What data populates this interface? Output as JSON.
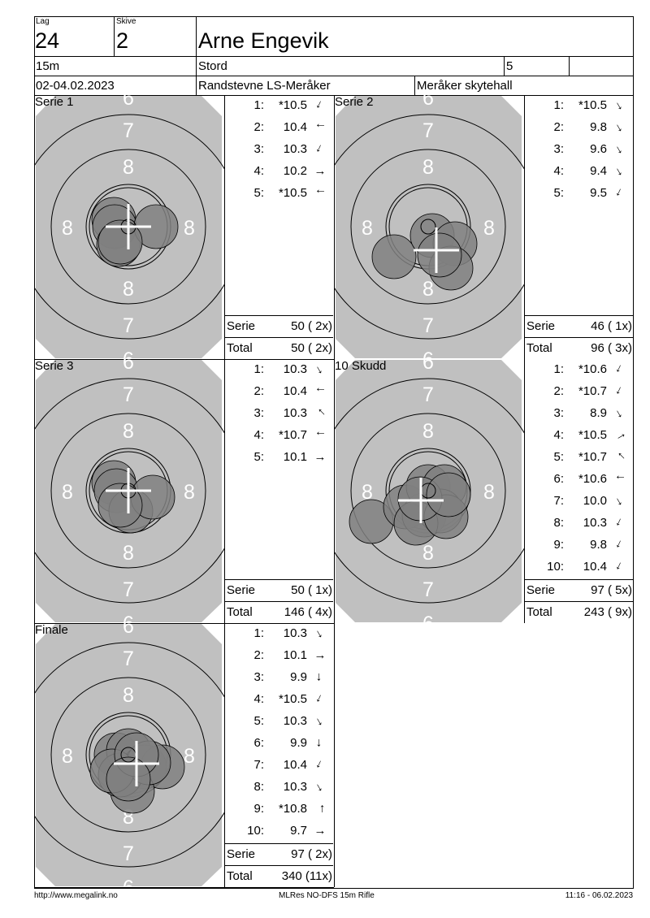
{
  "header": {
    "lag_label": "Lag",
    "lag": "24",
    "skive_label": "Skive",
    "skive": "2",
    "name": "Arne Engevik",
    "distance": "15m",
    "club": "Stord",
    "class": "5",
    "extra": "",
    "date": "02-04.02.2023",
    "event": "Randstevne LS-Meråker",
    "venue": "Meråker skytehall"
  },
  "ring_labels": {
    "r6": "6",
    "r7": "7",
    "r8": "8"
  },
  "colors": {
    "target_gray": "#c0c0c0",
    "shot_fill": "#808080",
    "mean_cross": "#ffffff"
  },
  "panels": [
    {
      "title": "Serie 1",
      "shots": [
        {
          "n": "1:",
          "v": "*10.5",
          "dir": "down-left"
        },
        {
          "n": "2:",
          "v": "10.4",
          "dir": "left"
        },
        {
          "n": "3:",
          "v": "10.3",
          "dir": "down-left"
        },
        {
          "n": "4:",
          "v": "10.2",
          "dir": "right"
        },
        {
          "n": "5:",
          "v": "*10.5",
          "dir": "left"
        }
      ],
      "serie_label": "Serie",
      "serie": "50 ( 2x)",
      "total_label": "Total",
      "total": "50 ( 2x)"
    },
    {
      "title": "Serie 2",
      "shots": [
        {
          "n": "1:",
          "v": "*10.5",
          "dir": "down-right"
        },
        {
          "n": "2:",
          "v": "9.8",
          "dir": "down-right"
        },
        {
          "n": "3:",
          "v": "9.6",
          "dir": "down-right"
        },
        {
          "n": "4:",
          "v": "9.4",
          "dir": "down-right"
        },
        {
          "n": "5:",
          "v": "9.5",
          "dir": "down-left"
        }
      ],
      "serie_label": "Serie",
      "serie": "46 ( 1x)",
      "total_label": "Total",
      "total": "96 ( 3x)"
    },
    {
      "title": "Serie 3",
      "shots": [
        {
          "n": "1:",
          "v": "10.3",
          "dir": "down-right"
        },
        {
          "n": "2:",
          "v": "10.4",
          "dir": "left"
        },
        {
          "n": "3:",
          "v": "10.3",
          "dir": "up-left"
        },
        {
          "n": "4:",
          "v": "*10.7",
          "dir": "left"
        },
        {
          "n": "5:",
          "v": "10.1",
          "dir": "right"
        }
      ],
      "serie_label": "Serie",
      "serie": "50 ( 1x)",
      "total_label": "Total",
      "total": "146 ( 4x)"
    },
    {
      "title": "10 Skudd",
      "shots": [
        {
          "n": "1:",
          "v": "*10.6",
          "dir": "down-left"
        },
        {
          "n": "2:",
          "v": "*10.7",
          "dir": "down-left"
        },
        {
          "n": "3:",
          "v": "8.9",
          "dir": "down-right"
        },
        {
          "n": "4:",
          "v": "*10.5",
          "dir": "up-right"
        },
        {
          "n": "5:",
          "v": "*10.7",
          "dir": "up-left"
        },
        {
          "n": "6:",
          "v": "*10.6",
          "dir": "left"
        },
        {
          "n": "7:",
          "v": "10.0",
          "dir": "down-right"
        },
        {
          "n": "8:",
          "v": "10.3",
          "dir": "down-left"
        },
        {
          "n": "9:",
          "v": "9.8",
          "dir": "down-left"
        },
        {
          "n": "10:",
          "v": "10.4",
          "dir": "down-left"
        }
      ],
      "serie_label": "Serie",
      "serie": "97 ( 5x)",
      "total_label": "Total",
      "total": "243 ( 9x)"
    },
    {
      "title": "Finale",
      "shots": [
        {
          "n": "1:",
          "v": "10.3",
          "dir": "down-right"
        },
        {
          "n": "2:",
          "v": "10.1",
          "dir": "right"
        },
        {
          "n": "3:",
          "v": "9.9",
          "dir": "down"
        },
        {
          "n": "4:",
          "v": "*10.5",
          "dir": "down-left"
        },
        {
          "n": "5:",
          "v": "10.3",
          "dir": "down-right"
        },
        {
          "n": "6:",
          "v": "9.9",
          "dir": "down"
        },
        {
          "n": "7:",
          "v": "10.4",
          "dir": "down-left"
        },
        {
          "n": "8:",
          "v": "10.3",
          "dir": "down-right"
        },
        {
          "n": "9:",
          "v": "*10.8",
          "dir": "up"
        },
        {
          "n": "10:",
          "v": "9.7",
          "dir": "right"
        }
      ],
      "serie_label": "Serie",
      "serie": "97 ( 2x)",
      "total_label": "Total",
      "total": "340 (11x)"
    }
  ],
  "footer": {
    "url": "http://www.megalink.no",
    "program": "MLRes NO-DFS 15m Rifle",
    "timestamp": "11:16 - 06.02.2023"
  }
}
